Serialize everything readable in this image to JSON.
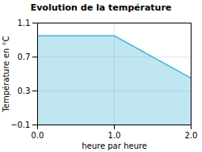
{
  "chart_data": {
    "type": "area",
    "title": "Evolution de la température",
    "x_label": "heure par heure",
    "y_label": "Température en °C",
    "x": [
      0,
      1,
      2
    ],
    "values": [
      0.95,
      0.95,
      0.45
    ],
    "color": "#4ab8d8",
    "xlim": [
      0,
      2
    ],
    "xticks": [
      0,
      1,
      2
    ],
    "ylim": [
      -0.1,
      1.1
    ],
    "yticks": [
      -0.1,
      0.3,
      0.7,
      1.1
    ],
    "grid": true
  }
}
